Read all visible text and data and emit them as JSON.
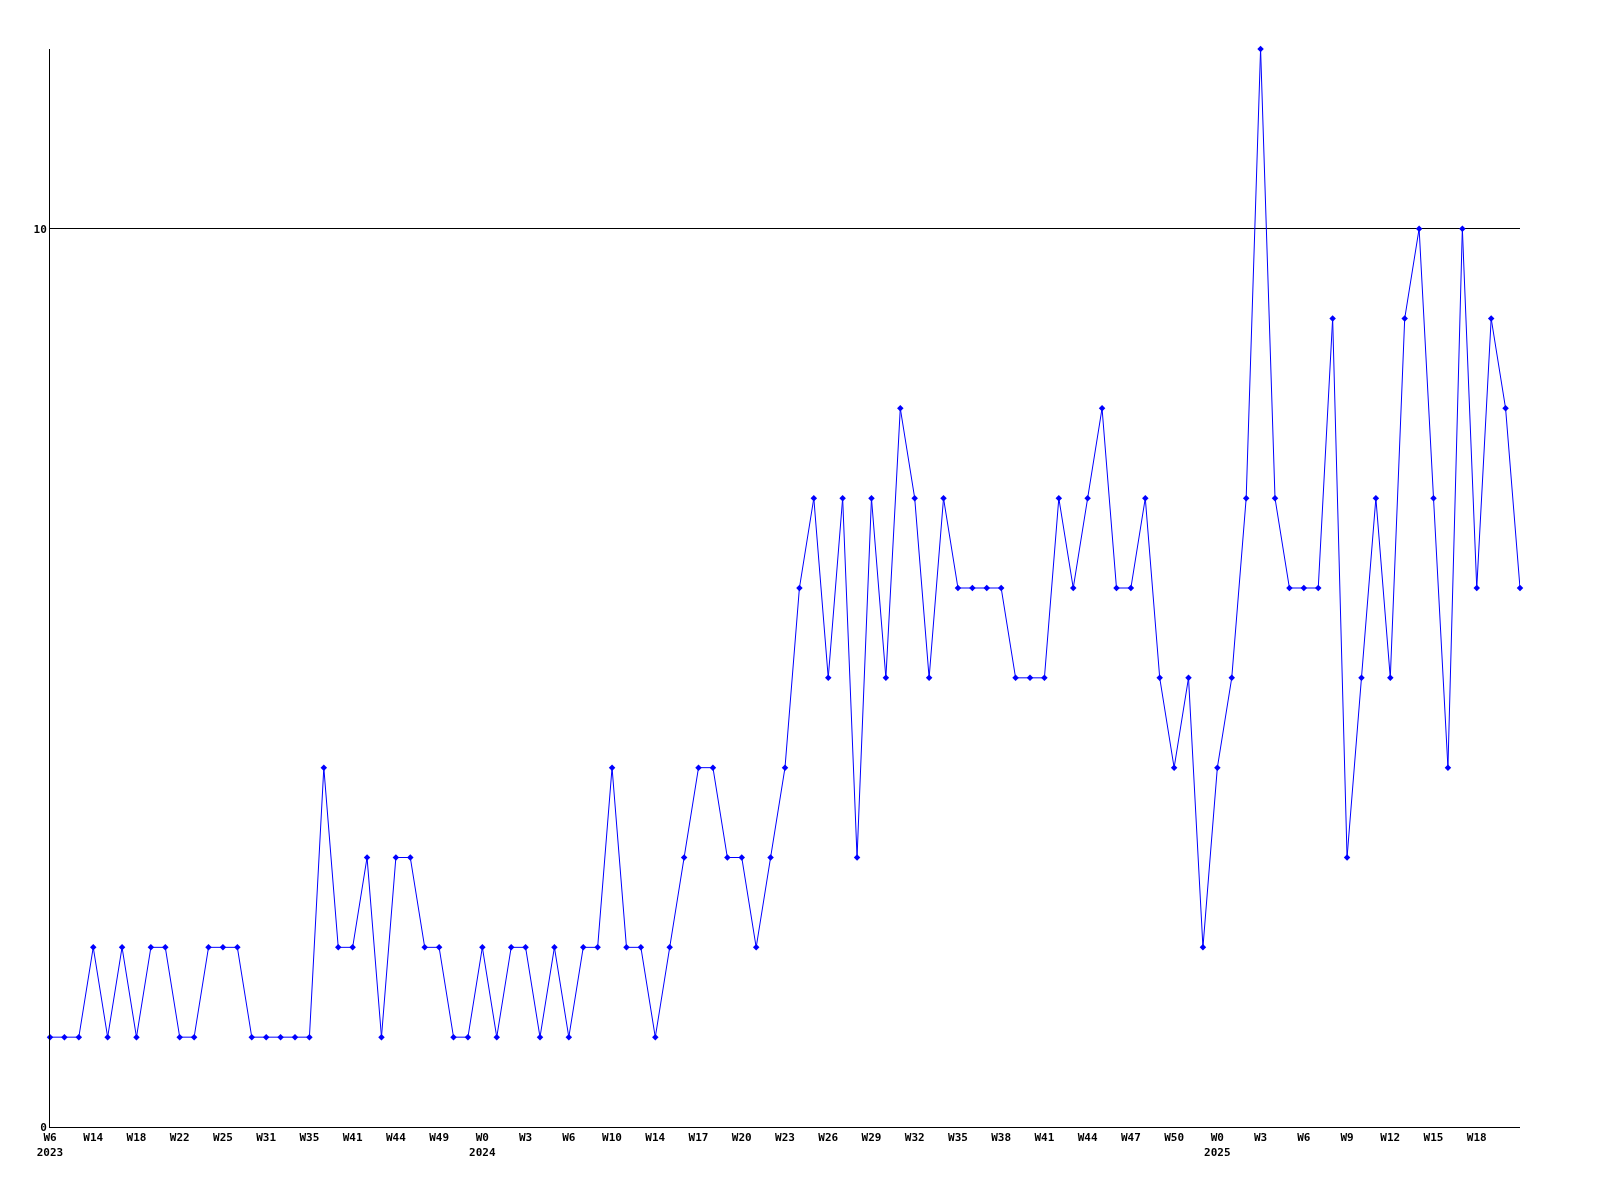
{
  "chart_data": {
    "type": "line",
    "categories": [
      "W6\n2023",
      null,
      null,
      "W14",
      null,
      null,
      "W18",
      null,
      null,
      "W22",
      null,
      null,
      "W25",
      null,
      null,
      "W31",
      null,
      null,
      "W35",
      null,
      null,
      "W41",
      null,
      null,
      "W44",
      null,
      null,
      "W49",
      null,
      null,
      "W0\n2024",
      null,
      null,
      "W3",
      null,
      null,
      "W6",
      null,
      null,
      "W10",
      null,
      null,
      "W14",
      null,
      null,
      "W17",
      null,
      null,
      "W20",
      null,
      null,
      "W23",
      null,
      null,
      "W26",
      null,
      null,
      "W29",
      null,
      null,
      "W32",
      null,
      null,
      "W35",
      null,
      null,
      "W38",
      null,
      null,
      "W41",
      null,
      null,
      "W44",
      null,
      null,
      "W47",
      null,
      null,
      "W50",
      null,
      null,
      "W0\n2025",
      null,
      null,
      "W3",
      null,
      null,
      "W6",
      null,
      null,
      "W9",
      null,
      null,
      "W12",
      null,
      null,
      "W15",
      null,
      null,
      "W18",
      null,
      null,
      null
    ],
    "series": [
      {
        "color": "#0000ff",
        "values": [
          1,
          1,
          1,
          2,
          1,
          2,
          1,
          2,
          2,
          1,
          1,
          2,
          2,
          2,
          1,
          1,
          1,
          1,
          1,
          4,
          2,
          2,
          3,
          1,
          3,
          3,
          2,
          2,
          1,
          1,
          2,
          1,
          2,
          2,
          1,
          2,
          1,
          2,
          2,
          4,
          2,
          2,
          1,
          2,
          3,
          4,
          4,
          3,
          3,
          2,
          3,
          4,
          6,
          7,
          5,
          7,
          3,
          7,
          5,
          8,
          7,
          5,
          7,
          6,
          6,
          6,
          6,
          5,
          5,
          5,
          7,
          6,
          7,
          8,
          6,
          6,
          7,
          5,
          4,
          5,
          2,
          4,
          5,
          7,
          12,
          7,
          6,
          6,
          6,
          9,
          3,
          5,
          7,
          5,
          9,
          10,
          7,
          4,
          10,
          6,
          9,
          8,
          6
        ]
      }
    ],
    "ylim": [
      0,
      12
    ],
    "yticks": [
      0,
      10
    ],
    "grid": "y",
    "marker": "diamond",
    "line_style": "solid",
    "legend": false
  }
}
